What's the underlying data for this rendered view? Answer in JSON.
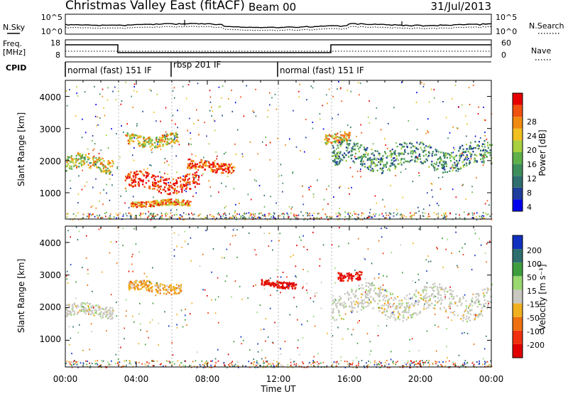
{
  "header": {
    "title": "Christmas Valley East (fitACF)",
    "beam": "Beam 00",
    "date": "31/Jul/2013"
  },
  "noise_panel": {
    "left_label": "N.Sky",
    "left_ticks": [
      "10^5",
      "10^0"
    ],
    "right_ticks": [
      "10^5",
      "10^0"
    ],
    "right_label": "N.Search"
  },
  "freq_panel": {
    "left_label_1": "Freq.",
    "left_label_2": "[MHz]",
    "left_ticks": [
      "18",
      "8"
    ],
    "right_ticks": [
      "60",
      "0"
    ],
    "right_label": "Nave"
  },
  "cpid_panel": {
    "label": "CPID",
    "modes": [
      "normal (fast) 151 IF",
      "rbsp 201 IF",
      "normal (fast) 151 IF"
    ]
  },
  "x_axis": {
    "title": "Time UT",
    "ticks": [
      "00:00",
      "04:00",
      "08:00",
      "12:00",
      "16:00",
      "20:00",
      "00:00"
    ]
  },
  "power_panel": {
    "ylabel": "Slant Range [km]",
    "yticks": [
      "4000",
      "3000",
      "2000",
      "1000"
    ],
    "colorbar_label": "Power [dB]",
    "colorbar_ticks": [
      "28",
      "24",
      "20",
      "16",
      "12",
      "8",
      "4"
    ],
    "colors": [
      "#0000ee",
      "#1e3c9c",
      "#2e6e6e",
      "#3e8e5c",
      "#5fb04a",
      "#a8d040",
      "#f0c020",
      "#f08a10",
      "#f05010",
      "#e80000"
    ]
  },
  "velocity_panel": {
    "ylabel": "Slant Range [km]",
    "yticks": [
      "4000",
      "3000",
      "2000",
      "1000"
    ],
    "colorbar_label": "Velocity [m s⁻¹]",
    "colorbar_ticks": [
      "200",
      "100",
      "50",
      "15",
      "-15",
      "-50",
      "-100",
      "-200"
    ],
    "colors": [
      "#1030c0",
      "#2e6e6e",
      "#3e9e3e",
      "#9ad870",
      "#c8c8c0",
      "#f0b020",
      "#f07010",
      "#f03010",
      "#e00000"
    ]
  },
  "chart_data": {
    "type": "heatmap",
    "x_range": [
      "00:00",
      "24:00"
    ],
    "y_range_km": [
      180,
      4500
    ],
    "mode_changes_ut": [
      "03:00",
      "06:00",
      "12:00",
      "15:00"
    ],
    "power_features": [
      {
        "time": [
          "00:00",
          "02:40"
        ],
        "range_km": [
          1700,
          2150
        ],
        "power_db": 18
      },
      {
        "time": [
          "03:20",
          "07:30"
        ],
        "range_km": [
          1100,
          1600
        ],
        "power_db": 28
      },
      {
        "time": [
          "06:50",
          "09:30"
        ],
        "range_km": [
          1700,
          2000
        ],
        "power_db": 26
      },
      {
        "time": [
          "03:20",
          "06:20"
        ],
        "range_km": [
          2500,
          2850
        ],
        "power_db": 18
      },
      {
        "time": [
          "03:40",
          "07:00"
        ],
        "range_km": [
          600,
          780
        ],
        "power_db": 22
      },
      {
        "time": [
          "14:30",
          "16:00"
        ],
        "range_km": [
          2600,
          2900
        ],
        "power_db": 20
      },
      {
        "time": [
          "15:00",
          "24:00"
        ],
        "range_km": [
          1800,
          2500
        ],
        "power_db": 10
      }
    ],
    "velocity_features": [
      {
        "time": [
          "00:00",
          "02:40"
        ],
        "range_km": [
          1750,
          2100
        ],
        "velocity_ms": 0
      },
      {
        "time": [
          "03:30",
          "06:30"
        ],
        "range_km": [
          2500,
          2800
        ],
        "velocity_ms": -40
      },
      {
        "time": [
          "11:00",
          "13:00"
        ],
        "range_km": [
          2650,
          2850
        ],
        "velocity_ms": -200
      },
      {
        "time": [
          "15:20",
          "16:40"
        ],
        "range_km": [
          2900,
          3150
        ],
        "velocity_ms": -200
      },
      {
        "time": [
          "15:00",
          "24:00"
        ],
        "range_km": [
          1800,
          2600
        ],
        "velocity_ms": 0
      }
    ]
  }
}
